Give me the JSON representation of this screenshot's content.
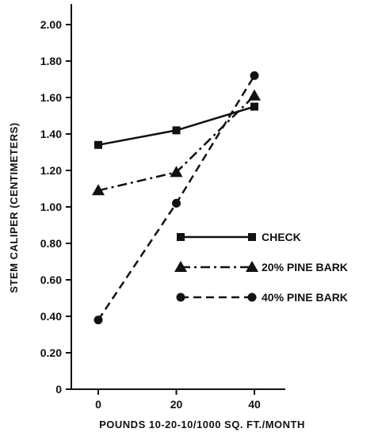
{
  "chart_data": {
    "type": "line",
    "title": "",
    "xlabel": "POUNDS 10-20-10/1000 SQ. FT./MONTH",
    "ylabel": "STEM CALIPER (CENTIMETERS)",
    "x": [
      0,
      20,
      40
    ],
    "x_tick_labels": [
      "0",
      "20",
      "40"
    ],
    "ylim": [
      0,
      2.0
    ],
    "y_ticks": [
      0,
      0.2,
      0.4,
      0.6,
      0.8,
      1.0,
      1.2,
      1.4,
      1.6,
      1.8,
      2.0
    ],
    "y_tick_labels": [
      "0",
      "0.20",
      "0.40",
      "0.60",
      "0.80",
      "1.00",
      "1.20",
      "1.40",
      "1.60",
      "1.80",
      "2.00"
    ],
    "grid": false,
    "legend_position": "center-right",
    "series": [
      {
        "name": "CHECK",
        "values": [
          1.34,
          1.42,
          1.55
        ],
        "marker": "square",
        "line_style": "solid"
      },
      {
        "name": "20% PINE BARK",
        "values": [
          1.09,
          1.19,
          1.61
        ],
        "marker": "triangle",
        "line_style": "dash-dot"
      },
      {
        "name": "40% PINE BARK",
        "values": [
          0.38,
          1.02,
          1.72
        ],
        "marker": "circle",
        "line_style": "dashed"
      }
    ]
  }
}
